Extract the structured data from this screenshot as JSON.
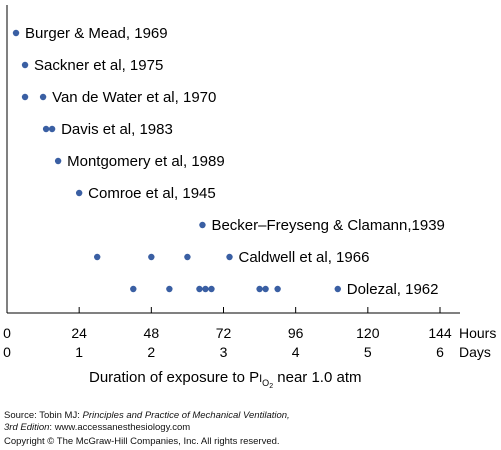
{
  "chart_data": {
    "type": "scatter",
    "title": "",
    "xlabel_parts": {
      "pre": "Duration of exposure to P",
      "sub1": "I",
      "sub2": "O",
      "sub3": "2",
      "post": " near 1.0 atm"
    },
    "x_unit_top": "Hours",
    "x_unit_bottom": "Days",
    "xlim": [
      0,
      144
    ],
    "ticks_hours": [
      {
        "value": 0,
        "label": "0"
      },
      {
        "value": 24,
        "label": "24"
      },
      {
        "value": 48,
        "label": "48"
      },
      {
        "value": 72,
        "label": "72"
      },
      {
        "value": 96,
        "label": "96"
      },
      {
        "value": 120,
        "label": "120"
      },
      {
        "value": 144,
        "label": "144"
      }
    ],
    "ticks_days": [
      {
        "value": 0,
        "label": "0"
      },
      {
        "value": 24,
        "label": "1"
      },
      {
        "value": 48,
        "label": "2"
      },
      {
        "value": 72,
        "label": "3"
      },
      {
        "value": 96,
        "label": "4"
      },
      {
        "value": 120,
        "label": "5"
      },
      {
        "value": 144,
        "label": "6"
      }
    ],
    "point_color": "#3a5fa3",
    "series": [
      {
        "name": "Burger & Mead, 1969",
        "hours": [
          3
        ]
      },
      {
        "name": "Sackner et al, 1975",
        "hours": [
          6
        ]
      },
      {
        "name": "Van de Water et al, 1970",
        "hours": [
          6,
          12
        ]
      },
      {
        "name": "Davis et al, 1983",
        "hours": [
          13,
          15
        ]
      },
      {
        "name": "Montgomery et al, 1989",
        "hours": [
          17
        ]
      },
      {
        "name": "Comroe et al, 1945",
        "hours": [
          24
        ]
      },
      {
        "name": "Becker–Freyseng & Clamann,1939",
        "hours": [
          65
        ]
      },
      {
        "name": "Caldwell et al, 1966",
        "hours": [
          30,
          48,
          60,
          74
        ]
      },
      {
        "name": "Dolezal, 1962",
        "hours": [
          42,
          54,
          64,
          66,
          68,
          84,
          86,
          90,
          110
        ]
      }
    ]
  },
  "footer": {
    "source_prefix": "Source: Tobin MJ: ",
    "source_title": "Principles and Practice of Mechanical Ventilation,",
    "source_edition": "3rd Edition",
    "source_url": ": www.accessanesthesiology.com",
    "copyright": "Copyright © The McGraw-Hill Companies, Inc. All rights reserved."
  }
}
